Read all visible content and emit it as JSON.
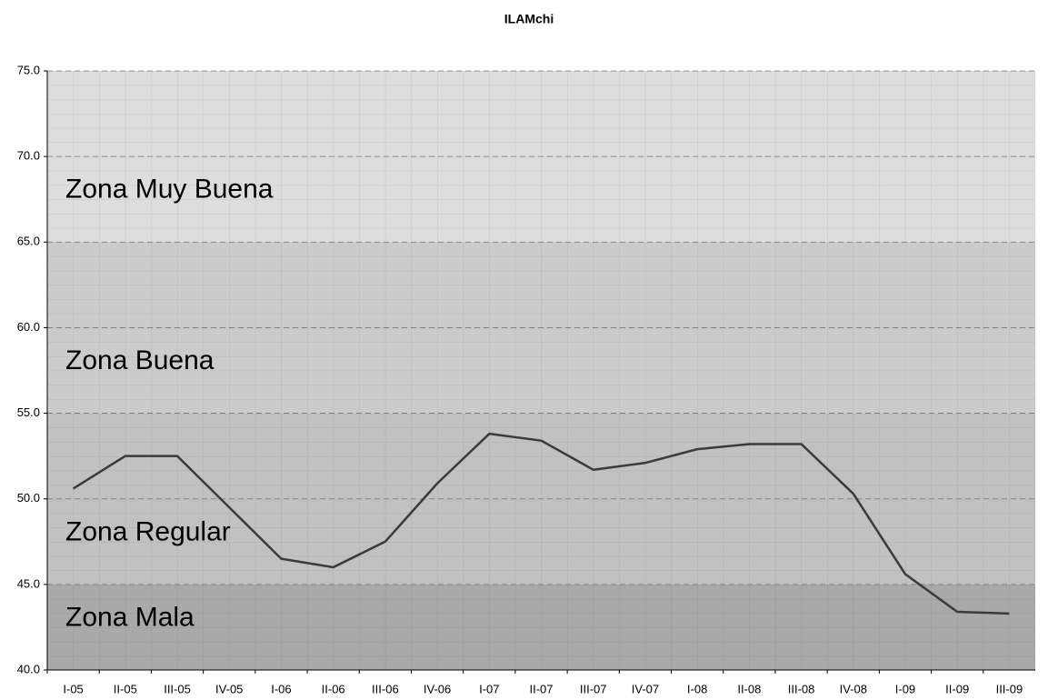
{
  "chart_data": {
    "type": "line",
    "title": "ILAMchi",
    "categories": [
      "I-05",
      "II-05",
      "III-05",
      "IV-05",
      "I-06",
      "II-06",
      "III-06",
      "IV-06",
      "I-07",
      "II-07",
      "III-07",
      "IV-07",
      "I-08",
      "II-08",
      "III-08",
      "IV-08",
      "I-09",
      "II-09",
      "III-09"
    ],
    "series": [
      {
        "name": "ILAMchi",
        "color": "#3a3a3a",
        "values": [
          50.6,
          52.5,
          52.5,
          49.5,
          46.5,
          46.0,
          47.5,
          50.9,
          53.8,
          53.4,
          51.7,
          52.1,
          52.9,
          53.2,
          53.2,
          50.3,
          45.6,
          43.4,
          43.3
        ]
      }
    ],
    "zones": [
      {
        "name": "Zona Muy Buena",
        "from": 65,
        "to": 75,
        "color": "#dddddd"
      },
      {
        "name": "Zona Buena",
        "from": 55,
        "to": 65,
        "color": "#cbcbcb"
      },
      {
        "name": "Zona Regular",
        "from": 45,
        "to": 55,
        "color": "#c1c1c1"
      },
      {
        "name": "Zona Mala",
        "from": 40,
        "to": 45,
        "color": "#a9a9a9"
      }
    ],
    "ylim": [
      40,
      75
    ],
    "yticks": [
      {
        "value": 40,
        "label": "40.0"
      },
      {
        "value": 45,
        "label": "45.0"
      },
      {
        "value": 50,
        "label": "50.0"
      },
      {
        "value": 55,
        "label": "55.0"
      },
      {
        "value": 60,
        "label": "60.0"
      },
      {
        "value": 65,
        "label": "65.0"
      },
      {
        "value": 70,
        "label": "70.0"
      },
      {
        "value": 75,
        "label": "75.0"
      }
    ],
    "grid": true
  }
}
